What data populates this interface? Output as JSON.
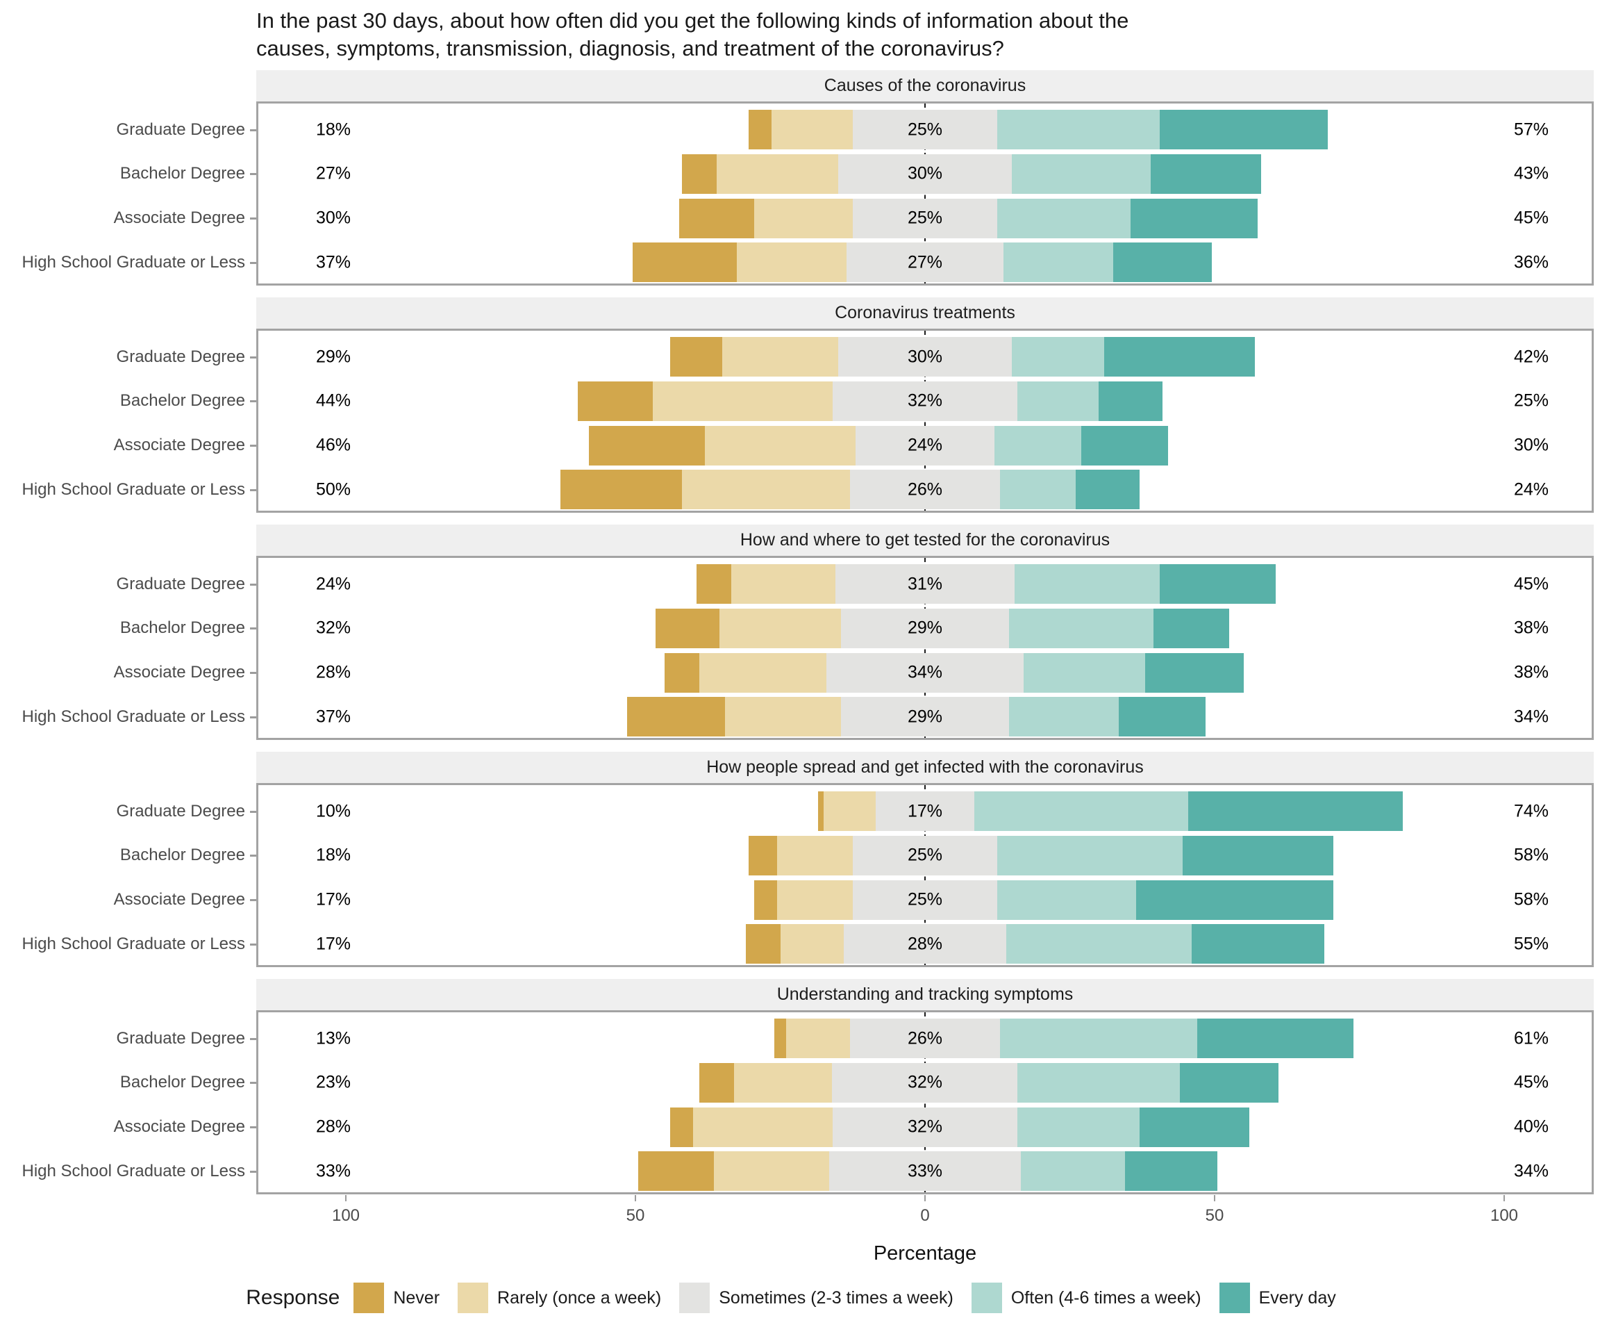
{
  "title": {
    "line1": "In the past 30 days, about how often did you get the following kinds of information about the",
    "line2": "causes, symptoms, transmission, diagnosis, and treatment of the coronavirus?"
  },
  "colors": {
    "never": "#d2a74c",
    "rarely": "#ebd9a9",
    "sometimes": "#e3e3e1",
    "often": "#aed8d0",
    "every_day": "#58b1a8",
    "strip_bg": "#efefef",
    "panel_border": "#a3a3a3",
    "axis_text": "#4b4b4b"
  },
  "axis": {
    "label": "Percentage",
    "ticks": [
      "100",
      "50",
      "0",
      "50",
      "100"
    ],
    "tick_values": [
      -100,
      -50,
      0,
      50,
      100
    ]
  },
  "legend": {
    "title": "Response",
    "items": [
      {
        "label": "Never",
        "color_key": "never"
      },
      {
        "label": "Rarely (once a week)",
        "color_key": "rarely"
      },
      {
        "label": "Sometimes (2-3 times a week)",
        "color_key": "sometimes"
      },
      {
        "label": "Often (4-6 times a week)",
        "color_key": "often"
      },
      {
        "label": "Every day",
        "color_key": "every_day"
      }
    ]
  },
  "chart_data": {
    "type": "bar",
    "subtype": "diverging-stacked-likert",
    "orientation": "horizontal",
    "series_names": [
      "Never",
      "Rarely (once a week)",
      "Sometimes (2-3 times a week)",
      "Often (4-6 times a week)",
      "Every day"
    ],
    "categories": [
      "Graduate Degree",
      "Bachelor Degree",
      "Associate Degree",
      "High School Graduate or Less"
    ],
    "xlabel": "Percentage",
    "x_tick_labels": [
      "100",
      "50",
      "0",
      "50",
      "100"
    ],
    "note": "Sometimes segment is centered on 0; left label = Never+Rarely, mid label = Sometimes, right label = Often+Every day",
    "facets": [
      {
        "title": "Causes of the coronavirus",
        "rows": [
          {
            "group": "Graduate Degree",
            "segments": {
              "never": 4,
              "rarely": 14,
              "sometimes": 25,
              "often": 28,
              "every_day": 29
            },
            "labels": {
              "left": "18%",
              "mid": "25%",
              "right": "57%"
            }
          },
          {
            "group": "Bachelor Degree",
            "segments": {
              "never": 6,
              "rarely": 21,
              "sometimes": 30,
              "often": 24,
              "every_day": 19
            },
            "labels": {
              "left": "27%",
              "mid": "30%",
              "right": "43%"
            }
          },
          {
            "group": "Associate Degree",
            "segments": {
              "never": 13,
              "rarely": 17,
              "sometimes": 25,
              "often": 23,
              "every_day": 22
            },
            "labels": {
              "left": "30%",
              "mid": "25%",
              "right": "45%"
            }
          },
          {
            "group": "High School Graduate or Less",
            "segments": {
              "never": 18,
              "rarely": 19,
              "sometimes": 27,
              "often": 19,
              "every_day": 17
            },
            "labels": {
              "left": "37%",
              "mid": "27%",
              "right": "36%"
            }
          }
        ]
      },
      {
        "title": "Coronavirus treatments",
        "rows": [
          {
            "group": "Graduate Degree",
            "segments": {
              "never": 9,
              "rarely": 20,
              "sometimes": 30,
              "often": 16,
              "every_day": 26
            },
            "labels": {
              "left": "29%",
              "mid": "30%",
              "right": "42%"
            }
          },
          {
            "group": "Bachelor Degree",
            "segments": {
              "never": 13,
              "rarely": 31,
              "sometimes": 32,
              "often": 14,
              "every_day": 11
            },
            "labels": {
              "left": "44%",
              "mid": "32%",
              "right": "25%"
            }
          },
          {
            "group": "Associate Degree",
            "segments": {
              "never": 20,
              "rarely": 26,
              "sometimes": 24,
              "often": 15,
              "every_day": 15
            },
            "labels": {
              "left": "46%",
              "mid": "24%",
              "right": "30%"
            }
          },
          {
            "group": "High School Graduate or Less",
            "segments": {
              "never": 21,
              "rarely": 29,
              "sometimes": 26,
              "often": 13,
              "every_day": 11
            },
            "labels": {
              "left": "50%",
              "mid": "26%",
              "right": "24%"
            }
          }
        ]
      },
      {
        "title": "How and where to get tested for the coronavirus",
        "rows": [
          {
            "group": "Graduate Degree",
            "segments": {
              "never": 6,
              "rarely": 18,
              "sometimes": 31,
              "often": 25,
              "every_day": 20
            },
            "labels": {
              "left": "24%",
              "mid": "31%",
              "right": "45%"
            }
          },
          {
            "group": "Bachelor Degree",
            "segments": {
              "never": 11,
              "rarely": 21,
              "sometimes": 29,
              "often": 25,
              "every_day": 13
            },
            "labels": {
              "left": "32%",
              "mid": "29%",
              "right": "38%"
            }
          },
          {
            "group": "Associate Degree",
            "segments": {
              "never": 6,
              "rarely": 22,
              "sometimes": 34,
              "often": 21,
              "every_day": 17
            },
            "labels": {
              "left": "28%",
              "mid": "34%",
              "right": "38%"
            }
          },
          {
            "group": "High School Graduate or Less",
            "segments": {
              "never": 17,
              "rarely": 20,
              "sometimes": 29,
              "often": 19,
              "every_day": 15
            },
            "labels": {
              "left": "37%",
              "mid": "29%",
              "right": "34%"
            }
          }
        ]
      },
      {
        "title": "How people spread and get infected with the coronavirus",
        "rows": [
          {
            "group": "Graduate Degree",
            "segments": {
              "never": 1,
              "rarely": 9,
              "sometimes": 17,
              "often": 37,
              "every_day": 37
            },
            "labels": {
              "left": "10%",
              "mid": "17%",
              "right": "74%"
            }
          },
          {
            "group": "Bachelor Degree",
            "segments": {
              "never": 5,
              "rarely": 13,
              "sometimes": 25,
              "often": 32,
              "every_day": 26
            },
            "labels": {
              "left": "18%",
              "mid": "25%",
              "right": "58%"
            }
          },
          {
            "group": "Associate Degree",
            "segments": {
              "never": 4,
              "rarely": 13,
              "sometimes": 25,
              "often": 24,
              "every_day": 34
            },
            "labels": {
              "left": "17%",
              "mid": "25%",
              "right": "58%"
            }
          },
          {
            "group": "High School Graduate or Less",
            "segments": {
              "never": 6,
              "rarely": 11,
              "sometimes": 28,
              "often": 32,
              "every_day": 23
            },
            "labels": {
              "left": "17%",
              "mid": "28%",
              "right": "55%"
            }
          }
        ]
      },
      {
        "title": "Understanding and tracking symptoms",
        "rows": [
          {
            "group": "Graduate Degree",
            "segments": {
              "never": 2,
              "rarely": 11,
              "sometimes": 26,
              "often": 34,
              "every_day": 27
            },
            "labels": {
              "left": "13%",
              "mid": "26%",
              "right": "61%"
            }
          },
          {
            "group": "Bachelor Degree",
            "segments": {
              "never": 6,
              "rarely": 17,
              "sometimes": 32,
              "often": 28,
              "every_day": 17
            },
            "labels": {
              "left": "23%",
              "mid": "32%",
              "right": "45%"
            }
          },
          {
            "group": "Associate Degree",
            "segments": {
              "never": 4,
              "rarely": 24,
              "sometimes": 32,
              "often": 21,
              "every_day": 19
            },
            "labels": {
              "left": "28%",
              "mid": "32%",
              "right": "40%"
            }
          },
          {
            "group": "High School Graduate or Less",
            "segments": {
              "never": 13,
              "rarely": 20,
              "sometimes": 33,
              "often": 18,
              "every_day": 16
            },
            "labels": {
              "left": "33%",
              "mid": "33%",
              "right": "34%"
            }
          }
        ]
      }
    ]
  }
}
